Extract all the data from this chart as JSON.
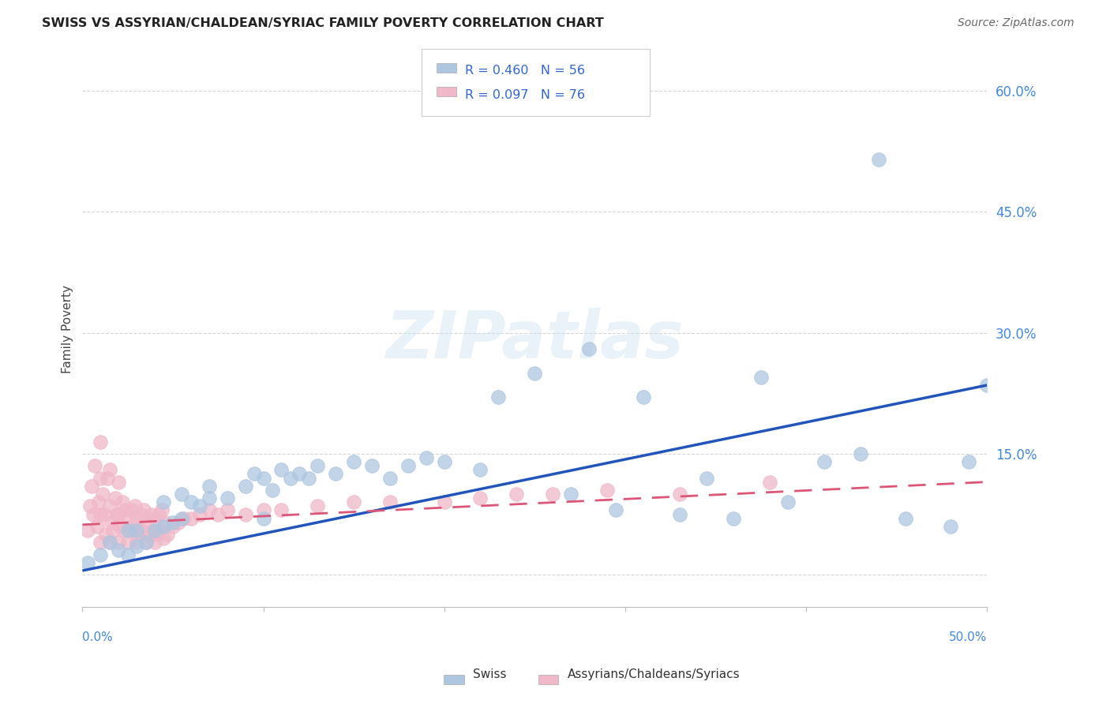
{
  "title": "SWISS VS ASSYRIAN/CHALDEAN/SYRIAC FAMILY POVERTY CORRELATION CHART",
  "source": "Source: ZipAtlas.com",
  "ylabel": "Family Poverty",
  "yticks": [
    0.0,
    0.15,
    0.3,
    0.45,
    0.6
  ],
  "ytick_labels": [
    "",
    "15.0%",
    "30.0%",
    "45.0%",
    "60.0%"
  ],
  "xlim": [
    0.0,
    0.5
  ],
  "ylim": [
    -0.04,
    0.65
  ],
  "watermark": "ZIPatlas",
  "swiss_color": "#aec6e0",
  "assyrian_color": "#f0b8c8",
  "swiss_line_color": "#2255bb",
  "assyrian_line_color": "#dd5577",
  "background_color": "#ffffff",
  "swiss_x": [
    0.003,
    0.01,
    0.015,
    0.02,
    0.025,
    0.025,
    0.03,
    0.03,
    0.035,
    0.04,
    0.045,
    0.045,
    0.05,
    0.055,
    0.055,
    0.06,
    0.065,
    0.07,
    0.07,
    0.08,
    0.09,
    0.095,
    0.1,
    0.1,
    0.105,
    0.11,
    0.115,
    0.12,
    0.125,
    0.13,
    0.14,
    0.15,
    0.16,
    0.17,
    0.18,
    0.19,
    0.2,
    0.22,
    0.23,
    0.25,
    0.27,
    0.28,
    0.295,
    0.31,
    0.33,
    0.345,
    0.36,
    0.375,
    0.39,
    0.41,
    0.43,
    0.44,
    0.455,
    0.48,
    0.49,
    0.5
  ],
  "swiss_y": [
    0.015,
    0.025,
    0.04,
    0.03,
    0.025,
    0.055,
    0.035,
    0.055,
    0.04,
    0.055,
    0.06,
    0.09,
    0.065,
    0.07,
    0.1,
    0.09,
    0.085,
    0.095,
    0.11,
    0.095,
    0.11,
    0.125,
    0.07,
    0.12,
    0.105,
    0.13,
    0.12,
    0.125,
    0.12,
    0.135,
    0.125,
    0.14,
    0.135,
    0.12,
    0.135,
    0.145,
    0.14,
    0.13,
    0.22,
    0.25,
    0.1,
    0.28,
    0.08,
    0.22,
    0.075,
    0.12,
    0.07,
    0.245,
    0.09,
    0.14,
    0.15,
    0.515,
    0.07,
    0.06,
    0.14,
    0.235
  ],
  "assyrian_x": [
    0.003,
    0.004,
    0.005,
    0.006,
    0.007,
    0.008,
    0.009,
    0.01,
    0.01,
    0.01,
    0.01,
    0.011,
    0.012,
    0.013,
    0.014,
    0.015,
    0.015,
    0.015,
    0.016,
    0.017,
    0.018,
    0.019,
    0.02,
    0.02,
    0.02,
    0.021,
    0.022,
    0.023,
    0.024,
    0.025,
    0.025,
    0.026,
    0.027,
    0.028,
    0.029,
    0.03,
    0.03,
    0.031,
    0.032,
    0.033,
    0.034,
    0.035,
    0.036,
    0.037,
    0.038,
    0.039,
    0.04,
    0.04,
    0.041,
    0.042,
    0.043,
    0.044,
    0.045,
    0.046,
    0.047,
    0.05,
    0.053,
    0.056,
    0.06,
    0.065,
    0.07,
    0.075,
    0.08,
    0.09,
    0.1,
    0.11,
    0.13,
    0.15,
    0.17,
    0.2,
    0.22,
    0.24,
    0.26,
    0.29,
    0.33,
    0.38
  ],
  "assyrian_y": [
    0.055,
    0.085,
    0.11,
    0.075,
    0.135,
    0.06,
    0.09,
    0.04,
    0.075,
    0.12,
    0.165,
    0.1,
    0.075,
    0.05,
    0.12,
    0.04,
    0.085,
    0.13,
    0.065,
    0.055,
    0.095,
    0.075,
    0.04,
    0.075,
    0.115,
    0.06,
    0.09,
    0.055,
    0.08,
    0.04,
    0.075,
    0.055,
    0.08,
    0.06,
    0.085,
    0.04,
    0.07,
    0.05,
    0.075,
    0.055,
    0.08,
    0.04,
    0.065,
    0.05,
    0.075,
    0.055,
    0.04,
    0.07,
    0.05,
    0.075,
    0.055,
    0.08,
    0.045,
    0.065,
    0.05,
    0.06,
    0.065,
    0.07,
    0.07,
    0.075,
    0.08,
    0.075,
    0.08,
    0.075,
    0.08,
    0.08,
    0.085,
    0.09,
    0.09,
    0.09,
    0.095,
    0.1,
    0.1,
    0.105,
    0.1,
    0.115
  ],
  "swiss_line_x": [
    0.0,
    0.5
  ],
  "swiss_line_y": [
    0.005,
    0.235
  ],
  "assyrian_line_x": [
    0.0,
    0.5
  ],
  "assyrian_line_y": [
    0.062,
    0.115
  ]
}
